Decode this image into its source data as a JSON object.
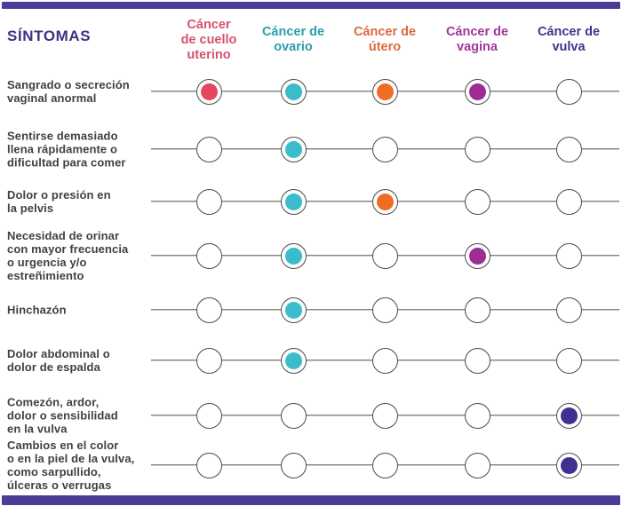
{
  "theme": {
    "accent_bar_color": "#4B3D97",
    "title_color": "#3C3383",
    "line_color": "#4B4B4D",
    "label_color": "#414144",
    "background": "#FFFFFF"
  },
  "header": {
    "title": "SÍNTOMAS"
  },
  "columns": [
    {
      "id": "cuello-uterino",
      "label": "Cáncer\nde cuello\nuterino",
      "name": "Cáncer de cuello uterino",
      "header_color": "#D5536E",
      "dot_color": "#E64660"
    },
    {
      "id": "ovario",
      "label": "Cáncer de\novario",
      "name": "Cáncer de ovario",
      "header_color": "#2B9FAC",
      "dot_color": "#3ABCCA"
    },
    {
      "id": "utero",
      "label": "Cáncer de\nútero",
      "name": "Cáncer de útero",
      "header_color": "#DC6A3B",
      "dot_color": "#EF6C23"
    },
    {
      "id": "vagina",
      "label": "Cáncer de\nvagina",
      "name": "Cáncer de vagina",
      "header_color": "#A1399B",
      "dot_color": "#9D2C94"
    },
    {
      "id": "vulva",
      "label": "Cáncer de\nvulva",
      "name": "Cáncer de vulva",
      "header_color": "#3E358C",
      "dot_color": "#3E3192"
    }
  ],
  "rows": [
    {
      "label": "Sangrado o secreción\nvaginal anormal",
      "marks": [
        1,
        1,
        1,
        1,
        0
      ]
    },
    {
      "label": "Sentirse demasiado\nllena rápidamente o\ndificultad para comer",
      "marks": [
        0,
        1,
        0,
        0,
        0
      ]
    },
    {
      "label": "Dolor o presión en\nla pelvis",
      "marks": [
        0,
        1,
        1,
        0,
        0
      ]
    },
    {
      "label": "Necesidad de orinar\ncon mayor frecuencia\no urgencia y/o\nestreñimiento",
      "marks": [
        0,
        1,
        0,
        1,
        0
      ]
    },
    {
      "label": "Hinchazón",
      "marks": [
        0,
        1,
        0,
        0,
        0
      ]
    },
    {
      "label": "Dolor abdominal o\ndolor de espalda",
      "marks": [
        0,
        1,
        0,
        0,
        0
      ]
    },
    {
      "label": "Comezón, ardor,\ndolor o sensibilidad\nen la vulva",
      "marks": [
        0,
        0,
        0,
        0,
        1
      ]
    },
    {
      "label": "Cambios en el color\no en la piel de la vulva,\ncomo sarpullido,\núlceras o verrugas",
      "marks": [
        0,
        0,
        0,
        0,
        1
      ]
    }
  ],
  "chart_data": {
    "type": "table",
    "title": "SÍNTOMAS",
    "columns": [
      "Cáncer de cuello uterino",
      "Cáncer de ovario",
      "Cáncer de útero",
      "Cáncer de vagina",
      "Cáncer de vulva"
    ],
    "column_colors": [
      "#E64660",
      "#3ABCCA",
      "#EF6C23",
      "#9D2C94",
      "#3E3192"
    ],
    "rows": [
      "Sangrado o secreción vaginal anormal",
      "Sentirse demasiado llena rápidamente o dificultad para comer",
      "Dolor o presión en la pelvis",
      "Necesidad de orinar con mayor frecuencia o urgencia y/o estreñimiento",
      "Hinchazón",
      "Dolor abdominal o dolor de espalda",
      "Comezón, ardor, dolor o sensibilidad en la vulva",
      "Cambios en el color o en la piel de la vulva, como sarpullido, úlceras o verrugas"
    ],
    "matrix": [
      [
        1,
        1,
        1,
        1,
        0
      ],
      [
        0,
        1,
        0,
        0,
        0
      ],
      [
        0,
        1,
        1,
        0,
        0
      ],
      [
        0,
        1,
        0,
        1,
        0
      ],
      [
        0,
        1,
        0,
        0,
        0
      ],
      [
        0,
        1,
        0,
        0,
        0
      ],
      [
        0,
        0,
        0,
        0,
        1
      ],
      [
        0,
        0,
        0,
        0,
        1
      ]
    ],
    "legend_position": "top",
    "grid": false
  }
}
